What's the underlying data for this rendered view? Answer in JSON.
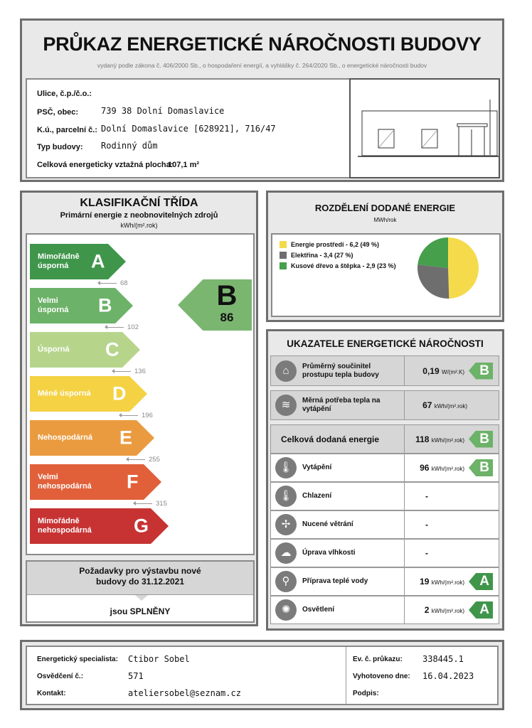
{
  "header": {
    "title": "PRŮKAZ ENERGETICKÉ NÁROČNOSTI BUDOVY",
    "subtitle": "vydaný podle zákona č. 406/2000 Sb., o hospodaření energií, a vyhlášky č. 264/2020 Sb., o energetické náročnosti budov"
  },
  "building": {
    "street_label": "Ulice, č.p./č.o.:",
    "street_value": "",
    "city_label": "PSČ, obec:",
    "city_value": "739 38 Dolní Domaslavice",
    "parcel_label": "K.ú., parcelní č.:",
    "parcel_value": "Dolní Domaslavice [628921], 716/47",
    "type_label": "Typ budovy:",
    "type_value": "Rodinný dům",
    "area_label": "Celková energeticky vztažná plocha:",
    "area_value": "107,1 m²"
  },
  "classification": {
    "title": "KLASIFIKAČNÍ TŘÍDA",
    "subtitle": "Primární energie z neobnovitelných zdrojů",
    "unit": "kWh/(m².rok)",
    "classes": [
      {
        "letter": "A",
        "label": "Mimořádně úsporná",
        "color": "#3f964b"
      },
      {
        "letter": "B",
        "label": "Velmi úsporná",
        "color": "#6cb268"
      },
      {
        "letter": "C",
        "label": "Úsporná",
        "color": "#b6d58b"
      },
      {
        "letter": "D",
        "label": "Méně úsporná",
        "color": "#f4d244"
      },
      {
        "letter": "E",
        "label": "Nehospodárná",
        "color": "#ea9b3f"
      },
      {
        "letter": "F",
        "label": "Velmi nehospodárná",
        "color": "#e1603a"
      },
      {
        "letter": "G",
        "label": "Mimořádně nehospodárná",
        "color": "#c73333"
      }
    ],
    "thresholds": [
      "68",
      "102",
      "136",
      "196",
      "255",
      "315"
    ],
    "current": {
      "letter": "B",
      "value": "86",
      "color": "#7bb671"
    },
    "requirements_title": "Požadavky pro výstavbu nové budovy do 31.12.2021",
    "requirements_result": "jsou SPLNĚNY"
  },
  "distribution": {
    "title": "ROZDĚLENÍ DODANÉ ENERGIE",
    "unit": "MWh/rok",
    "items": [
      {
        "label": "Energie prostředí - 6,2 (49 %)",
        "value": 6.2,
        "percent": 49,
        "color": "#f5db4b"
      },
      {
        "label": "Elektřina - 3,4 (27 %)",
        "value": 3.4,
        "percent": 27,
        "color": "#6e6e6e"
      },
      {
        "label": "Kusové dřevo a štěpka - 2,9 (23 %)",
        "value": 2.9,
        "percent": 23,
        "color": "#459f4b"
      }
    ]
  },
  "indicators": {
    "title": "UKAZATELE ENERGETICKÉ NÁROČNOSTI",
    "rows": [
      {
        "icon": "house-icon",
        "glyph": "⌂",
        "name": "Průměrný součinitel prostupu tepla budovy",
        "value": "0,19",
        "unit": "W/(m².K)",
        "cls": "B",
        "cls_color": "#6cb268"
      },
      {
        "icon": "heat-demand-icon",
        "glyph": "≋",
        "name": "Měrná potřeba tepla na vytápění",
        "value": "67",
        "unit": "kWh/(m².rok)",
        "cls": "",
        "cls_color": ""
      },
      {
        "icon": "",
        "glyph": "",
        "name": "Celková dodaná energie",
        "value": "118",
        "unit": "kWh/(m².rok)",
        "cls": "B",
        "cls_color": "#6cb268"
      },
      {
        "icon": "heating-thermometer-icon",
        "glyph": "🌡",
        "name": "Vytápění",
        "value": "96",
        "unit": "kWh/(m².rok)",
        "cls": "B",
        "cls_color": "#6cb268"
      },
      {
        "icon": "cooling-thermometer-icon",
        "glyph": "🌡",
        "name": "Chlazení",
        "value": "-",
        "unit": "",
        "cls": "",
        "cls_color": ""
      },
      {
        "icon": "fan-icon",
        "glyph": "✢",
        "name": "Nucené větrání",
        "value": "-",
        "unit": "",
        "cls": "",
        "cls_color": ""
      },
      {
        "icon": "humidity-cloud-icon",
        "glyph": "☁",
        "name": "Úprava vlhkosti",
        "value": "-",
        "unit": "",
        "cls": "",
        "cls_color": ""
      },
      {
        "icon": "water-tap-icon",
        "glyph": "⚲",
        "name": "Příprava teplé vody",
        "value": "19",
        "unit": "kWh/(m².rok)",
        "cls": "A",
        "cls_color": "#3f964b"
      },
      {
        "icon": "light-bulb-icon",
        "glyph": "✺",
        "name": "Osvětlení",
        "value": "2",
        "unit": "kWh/(m².rok)",
        "cls": "A",
        "cls_color": "#3f964b"
      }
    ]
  },
  "footer": {
    "specialist_label": "Energetický specialista:",
    "specialist_value": "Ctibor Sobel",
    "cert_label": "Osvědčení č.:",
    "cert_value": "571",
    "contact_label": "Kontakt:",
    "contact_value": "ateliersobel@seznam.cz",
    "ev_label": "Ev. č. průkazu:",
    "ev_value": "338445.1",
    "date_label": "Vyhotoveno dne:",
    "date_value": "16.04.2023",
    "sign_label": "Podpis:"
  }
}
